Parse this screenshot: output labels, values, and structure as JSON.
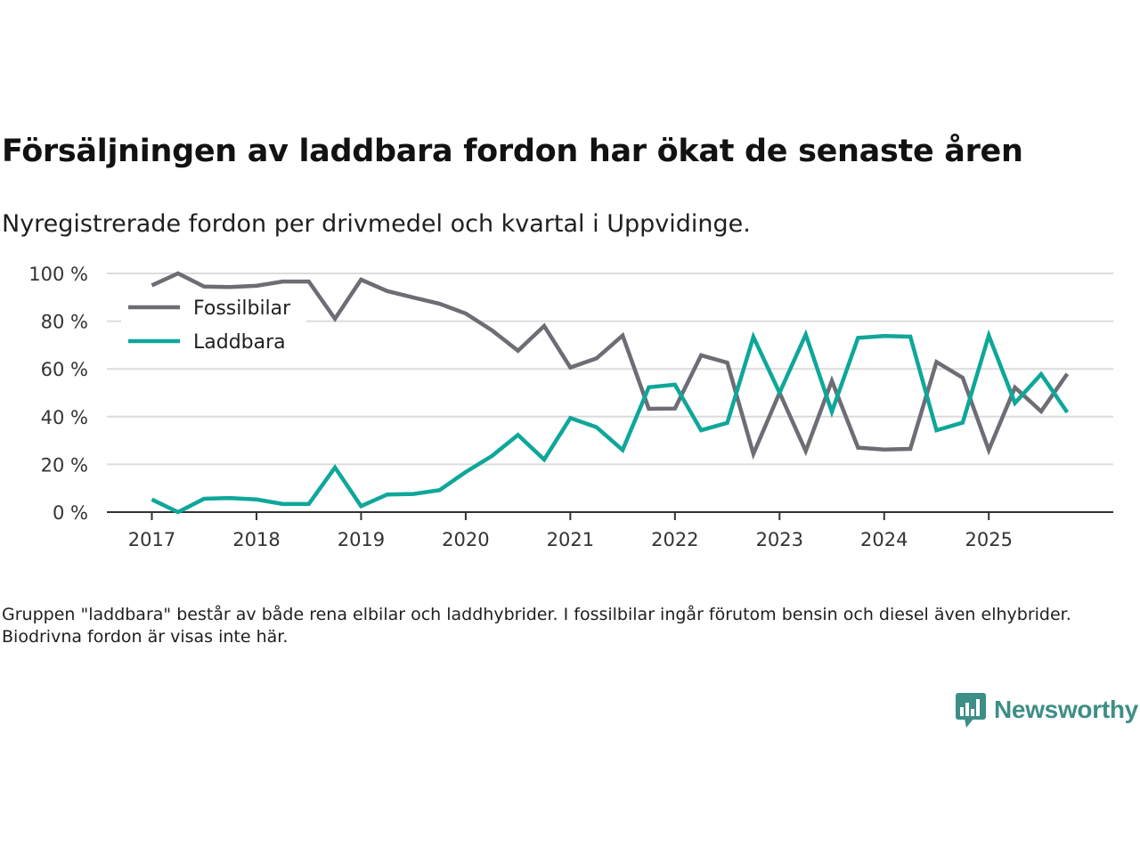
{
  "chart_data": {
    "type": "line",
    "title": "Försäljningen av laddbara fordon har ökat de senaste åren",
    "subtitle": "Nyregistrerade fordon per drivmedel och kvartal i Uppvidinge.",
    "ylabel": "",
    "xlabel": "",
    "ylim": [
      0,
      100
    ],
    "yticks": [
      0,
      20,
      40,
      60,
      80,
      100
    ],
    "ytick_labels": [
      "0 %",
      "20 %",
      "40 %",
      "60 %",
      "80 %",
      "100 %"
    ],
    "xticks": [
      2017,
      2018,
      2019,
      2020,
      2021,
      2022,
      2023,
      2024,
      2025
    ],
    "xtick_labels": [
      "2017",
      "2018",
      "2019",
      "2020",
      "2021",
      "2022",
      "2023",
      "2024",
      "2025"
    ],
    "xlim": [
      2016.57,
      2026.19
    ],
    "grid": true,
    "legend_position": "top-left",
    "x": [
      2017.0,
      2017.25,
      2017.5,
      2017.75,
      2018.0,
      2018.25,
      2018.5,
      2018.75,
      2019.0,
      2019.25,
      2019.5,
      2019.75,
      2020.0,
      2020.25,
      2020.5,
      2020.75,
      2021.0,
      2021.25,
      2021.5,
      2021.75,
      2022.0,
      2022.25,
      2022.5,
      2022.75,
      2023.0,
      2023.25,
      2023.5,
      2023.75,
      2024.0,
      2024.25,
      2024.5,
      2024.75,
      2025.0,
      2025.25,
      2025.5,
      2025.75
    ],
    "series": [
      {
        "name": "Fossilbilar",
        "color": "#6e6c74",
        "values": [
          95,
          100,
          94.5,
          94.3,
          94.8,
          96.6,
          96.6,
          81,
          97.4,
          92.6,
          89.9,
          87.3,
          83.2,
          76.2,
          67.6,
          78,
          60.6,
          64.4,
          74,
          43.3,
          43.4,
          65.7,
          62.6,
          24.4,
          50,
          25.6,
          55,
          27,
          26.2,
          26.5,
          62.9,
          56.3,
          26,
          52.2,
          42.2,
          57.9
        ]
      },
      {
        "name": "Laddbara",
        "color": "#0ea799",
        "values": [
          5.3,
          0,
          5.6,
          5.9,
          5.3,
          3.4,
          3.4,
          18.7,
          2.5,
          7.4,
          7.6,
          9.2,
          16.8,
          23.5,
          32.3,
          22,
          39.4,
          35.6,
          26,
          52.3,
          53.4,
          34.3,
          37.4,
          73.4,
          50,
          74.4,
          42,
          73,
          73.8,
          73.5,
          34.3,
          37.5,
          74,
          45.7,
          57.8,
          41.8
        ]
      }
    ]
  },
  "footnote": "Gruppen \"laddbara\" består av både rena elbilar och laddhybrider. I fossilbilar ingår förutom bensin och diesel även elhybrider. Biodrivna fordon är visas inte här.",
  "brand": {
    "name": "Newsworthy",
    "icon": "newsworthy-logo-icon",
    "color": "#3d8e86"
  }
}
